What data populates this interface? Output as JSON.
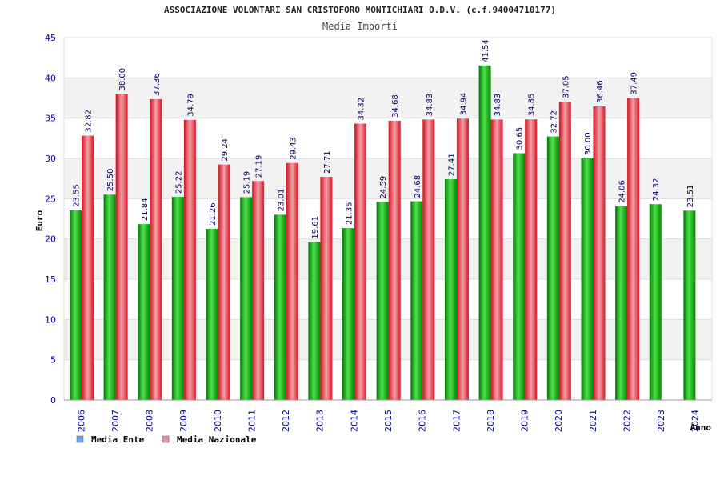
{
  "chart_data": {
    "type": "bar",
    "title": "ASSOCIAZIONE VOLONTARI SAN CRISTOFORO MONTICHIARI O.D.V. (c.f.94004710177)",
    "subtitle": "Media Importi",
    "xlabel": "Anno",
    "ylabel": "Euro",
    "ylim": [
      0,
      45
    ],
    "yticks": [
      0,
      5,
      10,
      15,
      20,
      25,
      30,
      35,
      40,
      45
    ],
    "grid": true,
    "legend": "bottom-left",
    "categories": [
      "2006",
      "2007",
      "2008",
      "2009",
      "2010",
      "2011",
      "2012",
      "2013",
      "2014",
      "2015",
      "2016",
      "2017",
      "2018",
      "2019",
      "2020",
      "2021",
      "2022",
      "2023",
      "2024"
    ],
    "series": [
      {
        "name": "Media Ente",
        "color": "#00b000",
        "legend_color": "#6aa8e8",
        "values": [
          23.55,
          25.5,
          21.84,
          25.22,
          21.26,
          25.19,
          23.01,
          19.61,
          21.35,
          24.59,
          24.68,
          27.41,
          41.54,
          30.65,
          32.72,
          30.0,
          24.06,
          24.32,
          23.51
        ],
        "labels": [
          "23.55",
          "25.50",
          "21.84",
          "25.22",
          "21.26",
          "25.19",
          "23.01",
          "19.61",
          "21.35",
          "24.59",
          "24.68",
          "27.41",
          "41.54",
          "30.65",
          "32.72",
          "30.00",
          "24.06",
          "24.32",
          "23.51"
        ]
      },
      {
        "name": "Media Nazionale",
        "color": "#e02030",
        "legend_color": "#e890b8",
        "values": [
          32.82,
          38.0,
          37.36,
          34.79,
          29.24,
          27.19,
          29.43,
          27.71,
          34.32,
          34.68,
          34.83,
          34.94,
          34.83,
          34.85,
          37.05,
          36.46,
          37.49,
          null,
          null
        ],
        "labels": [
          "32.82",
          "38.00",
          "37.36",
          "34.79",
          "29.24",
          "27.19",
          "29.43",
          "27.71",
          "34.32",
          "34.68",
          "34.83",
          "34.94",
          "34.83",
          "34.85",
          "37.05",
          "36.46",
          "37.49",
          "",
          ""
        ]
      }
    ]
  }
}
